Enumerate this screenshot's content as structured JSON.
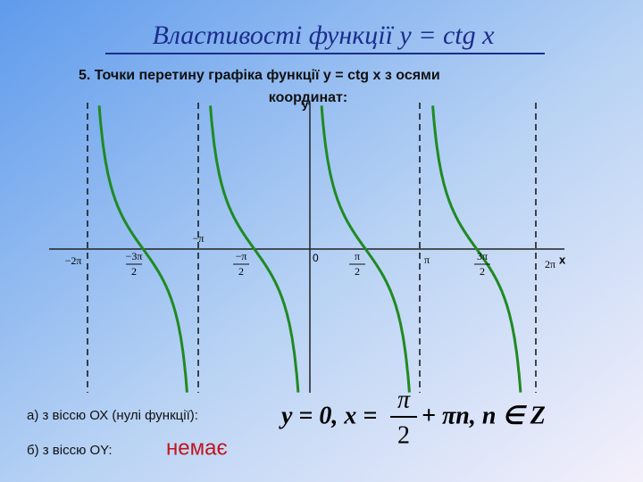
{
  "title": "Властивості функції y = ctg x",
  "subtitle": {
    "line1": "5. Точки перетину графіка функції  y = ctg x  з осями",
    "line2": "координат:"
  },
  "graph": {
    "y_axis_label": "y",
    "x_axis_label": "x",
    "origin_label": "0",
    "tick_labels": {
      "minus_two_pi": "−2π",
      "minus_three_pi_half": {
        "num": "−3π",
        "den": "2"
      },
      "minus_pi": "−π",
      "minus_pi_half": {
        "num": "−π",
        "den": "2"
      },
      "pi_half": {
        "num": "π",
        "den": "2"
      },
      "pi": "π",
      "three_pi_half": {
        "num": "3π",
        "den": "2"
      },
      "two_pi": "2π"
    }
  },
  "items": [
    {
      "label": "а) з віссю ОХ (нулі функції):",
      "formula": {
        "start": "y = 0,  x =",
        "num": "π",
        "den": "2",
        "end": "+ πn, n ∈ Z"
      }
    },
    {
      "label": "б) з віссю OY:",
      "answer": "немає"
    }
  ]
}
